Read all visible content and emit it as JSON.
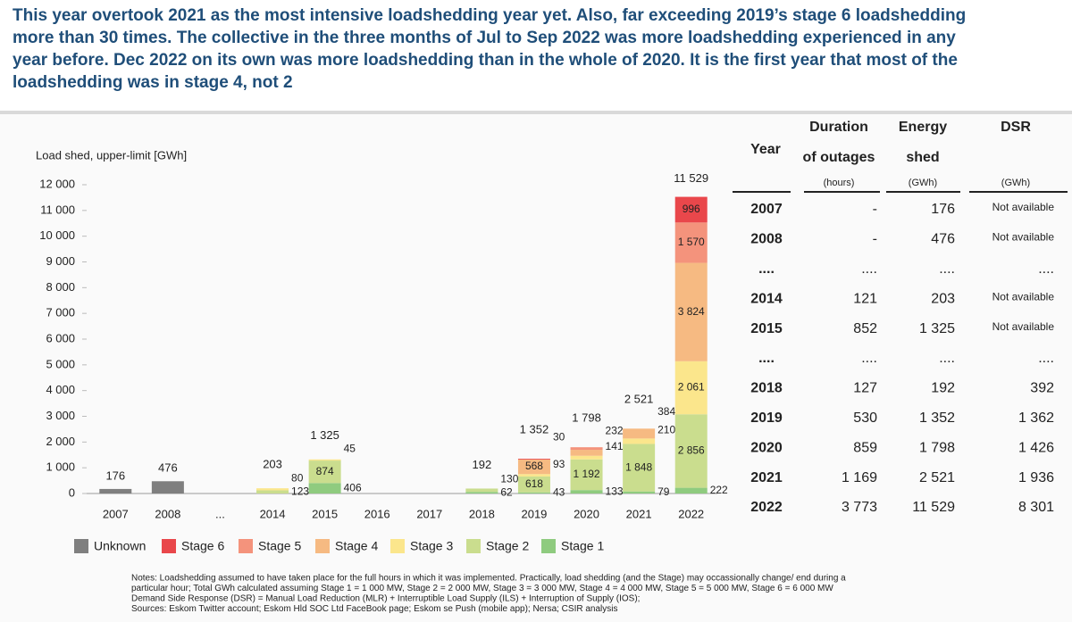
{
  "header": {
    "lines": [
      "This year overtook 2021 as the most intensive loadshedding year yet. Also, far exceeding 2019’s stage 6 loadshedding",
      "more than 30 times. The collective in the three months of Jul to Sep 2022 was more loadshedding experienced in any",
      "year before. Dec 2022 on its own was more loadshedding than in the whole of 2020. It is the first year that most of the",
      "loadshedding was in stage 4, not 2"
    ]
  },
  "chart_data": {
    "type": "stacked_bar",
    "y_label": "Load shed, upper-limit [GWh]",
    "categories": [
      "2007",
      "2008",
      "...",
      "2014",
      "2015",
      "2016",
      "2017",
      "2018",
      "2019",
      "2020",
      "2021",
      "2022"
    ],
    "series": [
      {
        "name": "Unknown",
        "color": "#7f7f7f",
        "values": [
          176,
          476,
          null,
          null,
          null,
          null,
          null,
          null,
          null,
          null,
          null,
          null
        ],
        "value_labels": [
          null,
          null,
          null,
          null,
          null,
          null,
          null,
          null,
          null,
          null,
          null,
          null
        ]
      },
      {
        "name": "Stage 6",
        "color": "#e9474b",
        "values": [
          null,
          null,
          null,
          null,
          null,
          null,
          null,
          null,
          30,
          null,
          null,
          996
        ],
        "value_labels": [
          null,
          null,
          null,
          null,
          null,
          null,
          null,
          null,
          "30",
          null,
          null,
          "996"
        ]
      },
      {
        "name": "Stage 5",
        "color": "#f4937c",
        "values": [
          null,
          null,
          null,
          null,
          null,
          null,
          null,
          null,
          null,
          100,
          null,
          1570
        ],
        "value_labels": [
          null,
          null,
          null,
          null,
          null,
          null,
          null,
          null,
          null,
          null,
          null,
          "1 570"
        ]
      },
      {
        "name": "Stage 4",
        "color": "#f6ba82",
        "values": [
          null,
          null,
          null,
          null,
          null,
          null,
          null,
          null,
          568,
          232,
          384,
          3824
        ],
        "value_labels": [
          null,
          null,
          null,
          null,
          null,
          null,
          null,
          null,
          "568",
          "232",
          "384",
          "3 824"
        ]
      },
      {
        "name": "Stage 3",
        "color": "#fbe68c",
        "values": [
          null,
          null,
          null,
          80,
          45,
          null,
          null,
          null,
          93,
          141,
          210,
          2061
        ],
        "value_labels": [
          null,
          null,
          null,
          "80",
          "45",
          null,
          null,
          null,
          "93",
          "141",
          "210",
          "2 061"
        ]
      },
      {
        "name": "Stage 2",
        "color": "#cadd8e",
        "values": [
          null,
          null,
          null,
          123,
          874,
          null,
          null,
          130,
          618,
          1192,
          1848,
          2856
        ],
        "value_labels": [
          null,
          null,
          null,
          "123",
          "874",
          null,
          null,
          "130",
          "618",
          "1 192",
          "1 848",
          "2 856"
        ]
      },
      {
        "name": "Stage 1",
        "color": "#8fcb7f",
        "values": [
          null,
          null,
          null,
          null,
          406,
          null,
          null,
          62,
          43,
          133,
          79,
          222
        ],
        "value_labels": [
          null,
          null,
          null,
          null,
          "406",
          null,
          null,
          "62",
          "43",
          "133",
          "79",
          "222"
        ]
      }
    ],
    "totals": [
      176,
      476,
      null,
      203,
      1325,
      null,
      null,
      192,
      1352,
      1798,
      2521,
      11529
    ],
    "total_labels": [
      "176",
      "476",
      null,
      "203",
      "1 325",
      null,
      null,
      "192",
      "1 352",
      "1 798",
      "2 521",
      "11 529"
    ],
    "ylim": [
      0,
      12000
    ],
    "yticks": [
      0,
      {
        "value": 1000,
        "label": "1 000"
      },
      {
        "value": 2000,
        "label": "2 000"
      },
      {
        "value": 3000,
        "label": "3 000"
      },
      {
        "value": 4000,
        "label": "4 000"
      },
      {
        "value": 5000,
        "label": "5 000"
      },
      {
        "value": 6000,
        "label": "6 000"
      },
      {
        "value": 7000,
        "label": "7 000"
      },
      {
        "value": 8000,
        "label": "8 000"
      },
      {
        "value": 9000,
        "label": "9 000"
      },
      {
        "value": 10000,
        "label": "10 000"
      },
      {
        "value": 11000,
        "label": "11 000"
      },
      {
        "value": 12000,
        "label": "12 000"
      }
    ]
  },
  "table": {
    "header": [
      [
        "Year"
      ],
      [
        "Duration",
        "of outages",
        "(hours)"
      ],
      [
        "Energy",
        "shed",
        "(GWh)"
      ],
      [
        "DSR",
        "(GWh)"
      ]
    ],
    "rows": [
      [
        "2007",
        "-",
        "176",
        "Not available"
      ],
      [
        "2008",
        "-",
        "476",
        "Not available"
      ],
      [
        "....",
        "....",
        "....",
        "...."
      ],
      [
        "2014",
        "121",
        "203",
        "Not available"
      ],
      [
        "2015",
        "852",
        "1 325",
        "Not available"
      ],
      [
        "....",
        "....",
        "....",
        "...."
      ],
      [
        "2018",
        "127",
        "192",
        "392"
      ],
      [
        "2019",
        "530",
        "1 352",
        "1 362"
      ],
      [
        "2020",
        "859",
        "1 798",
        "1 426"
      ],
      [
        "2021",
        "1 169",
        "2 521",
        "1 936"
      ],
      [
        "2022",
        "3 773",
        "11 529",
        "8 301"
      ]
    ]
  },
  "notes": [
    "Notes: Loadshedding assumed to have taken place for the full hours in which it was implemented.  Practically, load shedding (and the Stage) may occassionally change/ end during a",
    "particular hour; Total GWh calculated assuming Stage 1 = 1 000 MW, Stage 2 = 2 000 MW, Stage 3 = 3 000 MW, Stage 4 = 4 000 MW, Stage 5 = 5 000 MW, Stage 6 = 6 000 MW",
    "Demand Side Response (DSR) = Manual Load Reduction (MLR) + Interruptible Load Supply (ILS) + Interruption of Supply (IOS);",
    "Sources: Eskom Twitter account; Eskom Hld SOC Ltd FaceBook page; Eskom se Push (mobile app); Nersa; CSIR analysis"
  ]
}
